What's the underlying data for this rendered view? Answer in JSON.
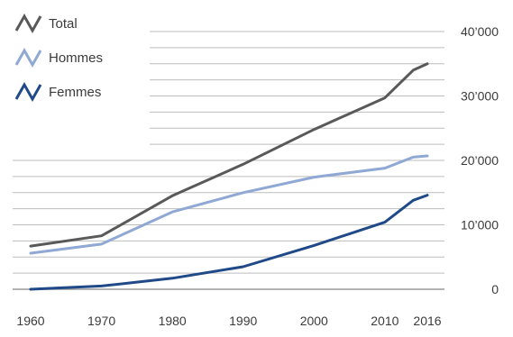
{
  "chart_data": {
    "type": "line",
    "x": [
      1960,
      1970,
      1980,
      1990,
      2000,
      2010,
      2014,
      2016
    ],
    "x_ticks": [
      "1960",
      "1970",
      "1980",
      "1990",
      "2000",
      "2010",
      "2016"
    ],
    "x_tick_values": [
      1960,
      1970,
      1980,
      1990,
      2000,
      2010,
      2016
    ],
    "y_ticks": [
      "0",
      "10’000",
      "20’000",
      "30’000",
      "40’000"
    ],
    "y_tick_values": [
      0,
      10000,
      20000,
      30000,
      40000
    ],
    "ylim": [
      0,
      40000
    ],
    "xlim": [
      1960,
      2016
    ],
    "grid": true,
    "legend_position": "top-left",
    "title": "",
    "xlabel": "",
    "ylabel": "",
    "series": [
      {
        "name": "Total",
        "color": "#595959",
        "values": [
          6700,
          8300,
          14500,
          19400,
          24800,
          29700,
          34000,
          35000
        ]
      },
      {
        "name": "Hommes",
        "color": "#8fa8d4",
        "values": [
          5600,
          7000,
          12000,
          15000,
          17400,
          18800,
          20500,
          20700
        ]
      },
      {
        "name": "Femmes",
        "color": "#1f4a87",
        "values": [
          0,
          500,
          1700,
          3500,
          6800,
          10400,
          13800,
          14600
        ]
      }
    ]
  }
}
